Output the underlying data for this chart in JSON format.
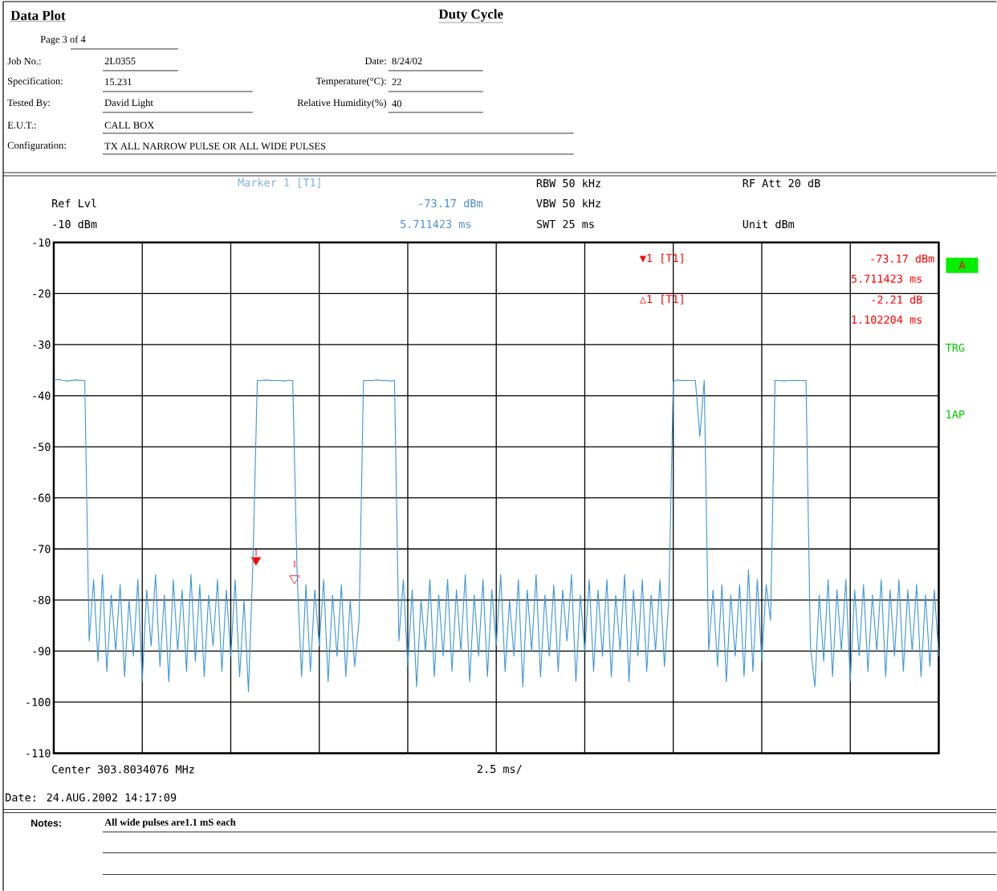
{
  "chart_data": {
    "type": "line",
    "title": "Duty Cycle",
    "categories": [
      null,
      null,
      null,
      null,
      null,
      null,
      null,
      null,
      null,
      null,
      null,
      null,
      null,
      null,
      null,
      null,
      null,
      null,
      null,
      null,
      null,
      null,
      null,
      null,
      null,
      null,
      null,
      null,
      null,
      null,
      null,
      null,
      null,
      null,
      null,
      null,
      null,
      null,
      null,
      null,
      null,
      null,
      null,
      null,
      null,
      null,
      null,
      null,
      null,
      null,
      null,
      null,
      null,
      null,
      null,
      null,
      null,
      null,
      null,
      null,
      null,
      null,
      null,
      null,
      null,
      null,
      null,
      null,
      null,
      null,
      null,
      null,
      null,
      null,
      null,
      null,
      null,
      null,
      null,
      null,
      null,
      null,
      null,
      null,
      null,
      null,
      null,
      null,
      null,
      null,
      null,
      null,
      null,
      null,
      null,
      null,
      null,
      null,
      null,
      null,
      null,
      null,
      null,
      null,
      null,
      null,
      null,
      null,
      null,
      null,
      null,
      null,
      null,
      null,
      null,
      null,
      null,
      null,
      null,
      null,
      null,
      null,
      null,
      null,
      null,
      null,
      null,
      null,
      null,
      null,
      null,
      null,
      null,
      null,
      null,
      null,
      null,
      null,
      null,
      null,
      null,
      null,
      null,
      null,
      null,
      null,
      null,
      null,
      null,
      null,
      null,
      null,
      null,
      null,
      null,
      null,
      null,
      null,
      null,
      null,
      null,
      null,
      null,
      null,
      null,
      null,
      null,
      null,
      null,
      null,
      null,
      null,
      null,
      null,
      null,
      null,
      null,
      null,
      null,
      null,
      null,
      null,
      null,
      null,
      null,
      null,
      null,
      null,
      null,
      null,
      null,
      null,
      null,
      null,
      null,
      null,
      null,
      null,
      null,
      null,
      null
    ],
    "ylim": [
      -110,
      -10
    ],
    "yticks": [
      {
        "value": -10,
        "label": "-10"
      },
      {
        "value": -20,
        "label": "-20"
      },
      {
        "value": -30,
        "label": "-30"
      },
      {
        "value": -40,
        "label": "-40"
      },
      {
        "value": -50,
        "label": "-50"
      },
      {
        "value": -60,
        "label": "-60"
      },
      {
        "value": -70,
        "label": "-70"
      },
      {
        "value": -80,
        "label": "-80"
      },
      {
        "value": -90,
        "label": "-90"
      },
      {
        "value": -100,
        "label": "-100"
      },
      {
        "value": -110,
        "label": "-110"
      }
    ],
    "tick_labels": "y",
    "grid": true,
    "series": [
      {
        "color": "#3a96d8",
        "marker": "none",
        "values": [
          -37,
          -36.8,
          -37,
          -37.1,
          -37,
          -36.9,
          -37,
          -37,
          -88,
          -76,
          -92,
          -75,
          -94,
          -79,
          -90,
          -77,
          -95,
          -80,
          -91,
          -76,
          -96,
          -78,
          -89,
          -75,
          -93,
          -79,
          -96,
          -76,
          -90,
          -78,
          -94,
          -75,
          -92,
          -77,
          -95,
          -79,
          -89,
          -76,
          -94,
          -78,
          -91,
          -76,
          -95,
          -80,
          -98,
          -73,
          -37,
          -37,
          -36.9,
          -37,
          -37,
          -37,
          -37.1,
          -37,
          -37,
          -75,
          -95,
          -77,
          -94,
          -78,
          -89,
          -76,
          -96,
          -79,
          -91,
          -77,
          -95,
          -80,
          -93,
          -84,
          -37,
          -37,
          -37,
          -36.9,
          -37,
          -37,
          -37.1,
          -37,
          -88,
          -76,
          -93,
          -78,
          -97,
          -80,
          -90,
          -76,
          -95,
          -79,
          -91,
          -76,
          -94,
          -78,
          -90,
          -75,
          -96,
          -79,
          -91,
          -76,
          -95,
          -78,
          -89,
          -75,
          -94,
          -80,
          -91,
          -76,
          -97,
          -78,
          -90,
          -75,
          -95,
          -79,
          -91,
          -77,
          -94,
          -78,
          -88,
          -75,
          -96,
          -79,
          -90,
          -76,
          -94,
          -78,
          -91,
          -76,
          -95,
          -79,
          -90,
          -75,
          -96,
          -78,
          -91,
          -76,
          -94,
          -79,
          -90,
          -76,
          -93,
          -80,
          -37.2,
          -36.9,
          -37,
          -37,
          -37,
          -37,
          -48,
          -37,
          -90,
          -78,
          -93,
          -77,
          -96,
          -79,
          -91,
          -77,
          -95,
          -74,
          -94,
          -76,
          -92,
          -77,
          -84,
          -37,
          -37,
          -37.1,
          -37,
          -37,
          -37,
          -37,
          -37,
          -89,
          -97,
          -79,
          -92,
          -76,
          -95,
          -78,
          -90,
          -76,
          -96,
          -78,
          -91,
          -77,
          -94,
          -79,
          -90,
          -76,
          -95,
          -78,
          -91,
          -76,
          -94,
          -78,
          -90,
          -77,
          -95,
          -79,
          -93,
          -78,
          -91
        ]
      }
    ],
    "annotations": [
      "Data Plot",
      "Page 3 of 4",
      "Job No.:",
      "2L0355",
      "Specification:",
      "15.231",
      "Tested By:",
      "David Light",
      "E.U.T.:",
      "CALL BOX",
      "Configuration:",
      "TX ALL NARROW PULSE OR ALL WIDE PULSES",
      "Date:",
      "8/24/02",
      "Temperature(°C):",
      "22",
      "Relative Humidity(%)",
      "40",
      "Marker 1 [T1]",
      "Ref Lvl",
      "-73.17 dBm",
      "-10 dBm",
      "5.711423 ms",
      "RBW 50 kHz",
      "VBW 50 kHz",
      "SWT 25 ms",
      "RF Att 20 dB",
      "Unit dBm",
      "A",
      "TRG",
      "1AP",
      "▼1 [T1]",
      "-73.17 dBm",
      "5.711423 ms",
      "△1 [T1]",
      "-2.21 dB",
      "1.102204 ms",
      "Center 303.8034076 MHz",
      "2.5 ms/",
      "Date: 24.AUG.2002 14:17:09",
      "Notes:",
      "All wide pulses are1.1 mS each",
      "1",
      "1"
    ]
  }
}
